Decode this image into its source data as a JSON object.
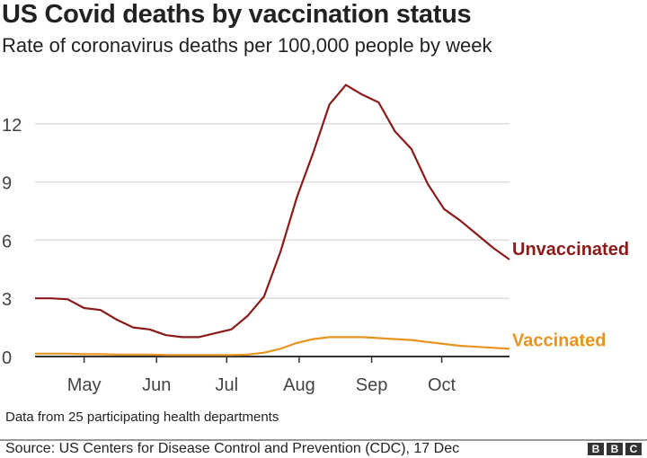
{
  "title": "US Covid deaths by vaccination status",
  "subtitle": "Rate of coronavirus deaths per 100,000 people by week",
  "note": "Data from 25 participating health departments",
  "source": "Source: US Centers for Disease Control and Prevention (CDC), 17 Dec",
  "logo": "BBC",
  "chart_data": {
    "type": "line",
    "title": "US Covid deaths by vaccination status",
    "ylabel": "",
    "xlabel": "",
    "ylim": [
      0,
      14
    ],
    "yticks": [
      0,
      3,
      6,
      9,
      12
    ],
    "grid": true,
    "xticks": [
      {
        "label": "May",
        "date": "2021-05-01"
      },
      {
        "label": "Jun",
        "date": "2021-06-01"
      },
      {
        "label": "Jul",
        "date": "2021-07-01"
      },
      {
        "label": "Aug",
        "date": "2021-08-01"
      },
      {
        "label": "Sep",
        "date": "2021-09-01"
      },
      {
        "label": "Oct",
        "date": "2021-10-01"
      }
    ],
    "x": [
      "2021-04-10",
      "2021-04-17",
      "2021-04-24",
      "2021-05-01",
      "2021-05-08",
      "2021-05-15",
      "2021-05-22",
      "2021-05-29",
      "2021-06-05",
      "2021-06-12",
      "2021-06-19",
      "2021-06-26",
      "2021-07-03",
      "2021-07-10",
      "2021-07-17",
      "2021-07-24",
      "2021-07-31",
      "2021-08-07",
      "2021-08-14",
      "2021-08-21",
      "2021-08-28",
      "2021-09-04",
      "2021-09-11",
      "2021-09-18",
      "2021-09-25",
      "2021-10-02",
      "2021-10-09",
      "2021-10-16",
      "2021-10-23",
      "2021-10-30"
    ],
    "series": [
      {
        "name": "Unvaccinated",
        "color": "#8b1a1a",
        "values": [
          3.0,
          3.0,
          2.95,
          2.5,
          2.4,
          1.9,
          1.5,
          1.4,
          1.1,
          1.0,
          1.0,
          1.2,
          1.4,
          2.1,
          3.1,
          5.4,
          8.2,
          10.5,
          13.0,
          14.0,
          13.5,
          13.1,
          11.6,
          10.7,
          8.9,
          7.6,
          7.0,
          6.3,
          5.6,
          5.0
        ]
      },
      {
        "name": "Vaccinated",
        "color": "#e8941f",
        "values": [
          0.15,
          0.15,
          0.15,
          0.12,
          0.12,
          0.1,
          0.1,
          0.1,
          0.08,
          0.08,
          0.08,
          0.08,
          0.08,
          0.1,
          0.2,
          0.4,
          0.7,
          0.9,
          1.0,
          1.0,
          1.0,
          0.95,
          0.9,
          0.85,
          0.75,
          0.65,
          0.55,
          0.5,
          0.45,
          0.4
        ]
      }
    ]
  }
}
